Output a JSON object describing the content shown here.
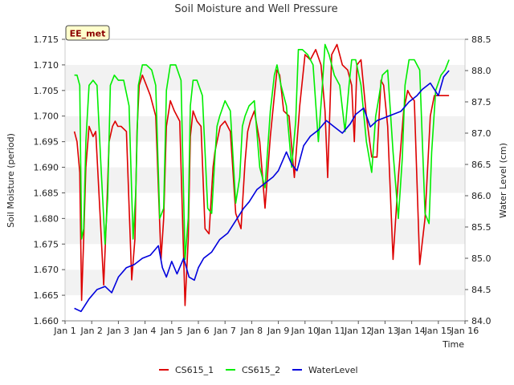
{
  "chart_data": {
    "type": "line",
    "title": "Soil Moisture and Well Pressure",
    "badge": "EE_met",
    "xlabel": "Time",
    "ylabel_left": "Soil Moisture (period)",
    "ylabel_right": "Water Level (cm)",
    "xlim": [
      1,
      16
    ],
    "ylim_left": [
      1.66,
      1.715
    ],
    "ylim_right": [
      84.0,
      88.5
    ],
    "x_ticks": [
      1,
      2,
      3,
      4,
      5,
      6,
      7,
      8,
      9,
      10,
      11,
      12,
      13,
      14,
      15,
      16
    ],
    "x_tick_labels": [
      "Jan 1",
      "Jan 2",
      "Jan 3",
      "Jan 4",
      "Jan 5",
      "Jan 6",
      "Jan 7",
      "Jan 8",
      "Jan 9",
      "Jan 10",
      "Jan 11",
      "Jan 12",
      "Jan 13",
      "Jan 14",
      "Jan 15",
      "Jan 16"
    ],
    "y_left_ticks": [
      1.66,
      1.665,
      1.67,
      1.675,
      1.68,
      1.685,
      1.69,
      1.695,
      1.7,
      1.705,
      1.71,
      1.715
    ],
    "y_left_tick_labels": [
      "1.660",
      "1.665",
      "1.670",
      "1.675",
      "1.680",
      "1.685",
      "1.690",
      "1.695",
      "1.700",
      "1.705",
      "1.710",
      "1.715"
    ],
    "y_right_ticks": [
      84.0,
      84.5,
      85.0,
      85.5,
      86.0,
      86.5,
      87.0,
      87.5,
      88.0,
      88.5
    ],
    "y_right_tick_labels": [
      "84.0",
      "84.5",
      "85.0",
      "85.5",
      "86.0",
      "86.5",
      "87.0",
      "87.5",
      "88.0",
      "88.5"
    ],
    "grid": "horizontal bands",
    "legend_position": "bottom-center",
    "series": [
      {
        "name": "CS615_1",
        "color": "#dd0000",
        "axis": "left",
        "x": [
          1.35,
          1.45,
          1.55,
          1.62,
          1.7,
          1.78,
          1.9,
          2.05,
          2.15,
          2.3,
          2.45,
          2.55,
          2.65,
          2.78,
          2.88,
          2.98,
          3.1,
          3.3,
          3.5,
          3.62,
          3.7,
          3.78,
          3.9,
          4.05,
          4.2,
          4.4,
          4.6,
          4.7,
          4.8,
          4.95,
          5.1,
          5.3,
          5.5,
          5.62,
          5.7,
          5.8,
          5.95,
          6.1,
          6.25,
          6.4,
          6.55,
          6.62,
          6.7,
          6.82,
          7.0,
          7.2,
          7.4,
          7.6,
          7.75,
          7.85,
          7.95,
          8.1,
          8.3,
          8.5,
          8.7,
          8.85,
          8.95,
          9.05,
          9.2,
          9.4,
          9.6,
          9.8,
          10.0,
          10.2,
          10.4,
          10.6,
          10.75,
          10.85,
          11.0,
          11.2,
          11.4,
          11.6,
          11.75,
          11.85,
          11.95,
          12.1,
          12.3,
          12.5,
          12.7,
          12.85,
          12.95,
          13.1,
          13.3,
          13.5,
          13.7,
          13.85,
          13.95,
          14.1,
          14.3,
          14.5,
          14.7,
          14.85,
          14.95,
          15.1,
          15.25,
          15.4
        ],
        "y": [
          1.697,
          1.695,
          1.689,
          1.664,
          1.676,
          1.69,
          1.698,
          1.696,
          1.697,
          1.682,
          1.667,
          1.68,
          1.695,
          1.698,
          1.699,
          1.698,
          1.698,
          1.697,
          1.668,
          1.676,
          1.697,
          1.706,
          1.708,
          1.706,
          1.704,
          1.7,
          1.672,
          1.68,
          1.698,
          1.703,
          1.701,
          1.699,
          1.663,
          1.676,
          1.696,
          1.701,
          1.699,
          1.698,
          1.678,
          1.677,
          1.69,
          1.693,
          1.695,
          1.698,
          1.699,
          1.697,
          1.681,
          1.678,
          1.691,
          1.697,
          1.699,
          1.701,
          1.695,
          1.682,
          1.696,
          1.704,
          1.709,
          1.708,
          1.701,
          1.7,
          1.688,
          1.702,
          1.712,
          1.711,
          1.713,
          1.71,
          1.701,
          1.688,
          1.712,
          1.714,
          1.71,
          1.709,
          1.706,
          1.695,
          1.71,
          1.711,
          1.7,
          1.692,
          1.692,
          1.707,
          1.706,
          1.698,
          1.672,
          1.688,
          1.701,
          1.705,
          1.704,
          1.703,
          1.671,
          1.68,
          1.7,
          1.704,
          1.704,
          1.704,
          1.704,
          1.704
        ]
      },
      {
        "name": "CS615_2",
        "color": "#00ee00",
        "axis": "left",
        "x": [
          1.35,
          1.45,
          1.55,
          1.62,
          1.7,
          1.78,
          1.9,
          2.05,
          2.2,
          2.35,
          2.5,
          2.6,
          2.7,
          2.85,
          3.0,
          3.2,
          3.4,
          3.55,
          3.65,
          3.75,
          3.9,
          4.05,
          4.25,
          4.4,
          4.55,
          4.7,
          4.8,
          4.95,
          5.15,
          5.35,
          5.5,
          5.62,
          5.7,
          5.8,
          5.95,
          6.15,
          6.35,
          6.5,
          6.62,
          6.7,
          6.8,
          7.0,
          7.2,
          7.4,
          7.55,
          7.65,
          7.75,
          7.9,
          8.1,
          8.3,
          8.5,
          8.7,
          8.85,
          8.95,
          9.1,
          9.3,
          9.5,
          9.65,
          9.75,
          9.9,
          10.1,
          10.3,
          10.5,
          10.65,
          10.75,
          10.9,
          11.1,
          11.3,
          11.5,
          11.65,
          11.75,
          11.9,
          12.1,
          12.3,
          12.5,
          12.65,
          12.75,
          12.9,
          13.1,
          13.3,
          13.5,
          13.65,
          13.75,
          13.9,
          14.1,
          14.3,
          14.5,
          14.65,
          14.75,
          14.9,
          15.1,
          15.25,
          15.4
        ],
        "y": [
          1.708,
          1.708,
          1.706,
          1.676,
          1.678,
          1.695,
          1.706,
          1.707,
          1.706,
          1.69,
          1.675,
          1.684,
          1.706,
          1.708,
          1.707,
          1.707,
          1.702,
          1.676,
          1.685,
          1.706,
          1.71,
          1.71,
          1.709,
          1.706,
          1.68,
          1.682,
          1.705,
          1.71,
          1.71,
          1.707,
          1.672,
          1.68,
          1.702,
          1.707,
          1.707,
          1.704,
          1.682,
          1.681,
          1.692,
          1.698,
          1.7,
          1.703,
          1.701,
          1.683,
          1.688,
          1.698,
          1.7,
          1.702,
          1.703,
          1.69,
          1.686,
          1.701,
          1.708,
          1.71,
          1.706,
          1.702,
          1.69,
          1.699,
          1.713,
          1.713,
          1.712,
          1.71,
          1.695,
          1.706,
          1.714,
          1.712,
          1.708,
          1.706,
          1.697,
          1.706,
          1.711,
          1.711,
          1.706,
          1.695,
          1.689,
          1.7,
          1.703,
          1.708,
          1.709,
          1.693,
          1.68,
          1.692,
          1.706,
          1.711,
          1.711,
          1.709,
          1.681,
          1.679,
          1.693,
          1.705,
          1.708,
          1.709,
          1.711
        ]
      },
      {
        "name": "WaterLevel",
        "color": "#0000dd",
        "axis": "right",
        "x": [
          1.35,
          1.6,
          1.9,
          2.2,
          2.5,
          2.75,
          3.0,
          3.3,
          3.6,
          3.9,
          4.2,
          4.5,
          4.65,
          4.8,
          5.0,
          5.2,
          5.45,
          5.65,
          5.85,
          6.0,
          6.2,
          6.5,
          6.8,
          7.1,
          7.4,
          7.7,
          7.9,
          8.2,
          8.5,
          8.8,
          9.0,
          9.3,
          9.5,
          9.7,
          9.95,
          10.2,
          10.5,
          10.8,
          11.1,
          11.4,
          11.7,
          11.9,
          12.2,
          12.45,
          12.7,
          13.0,
          13.3,
          13.6,
          13.9,
          14.2,
          14.4,
          14.7,
          15.0,
          15.2,
          15.4
        ],
        "y": [
          84.2,
          84.15,
          84.35,
          84.5,
          84.55,
          84.45,
          84.7,
          84.85,
          84.9,
          85.0,
          85.05,
          85.2,
          84.85,
          84.7,
          84.95,
          84.75,
          85.0,
          84.7,
          84.65,
          84.85,
          85.0,
          85.1,
          85.3,
          85.4,
          85.6,
          85.8,
          85.9,
          86.1,
          86.2,
          86.3,
          86.4,
          86.7,
          86.5,
          86.4,
          86.8,
          86.95,
          87.05,
          87.2,
          87.1,
          87.0,
          87.15,
          87.3,
          87.4,
          87.1,
          87.2,
          87.25,
          87.3,
          87.35,
          87.5,
          87.6,
          87.7,
          87.8,
          87.6,
          87.9,
          88.0
        ]
      }
    ]
  }
}
